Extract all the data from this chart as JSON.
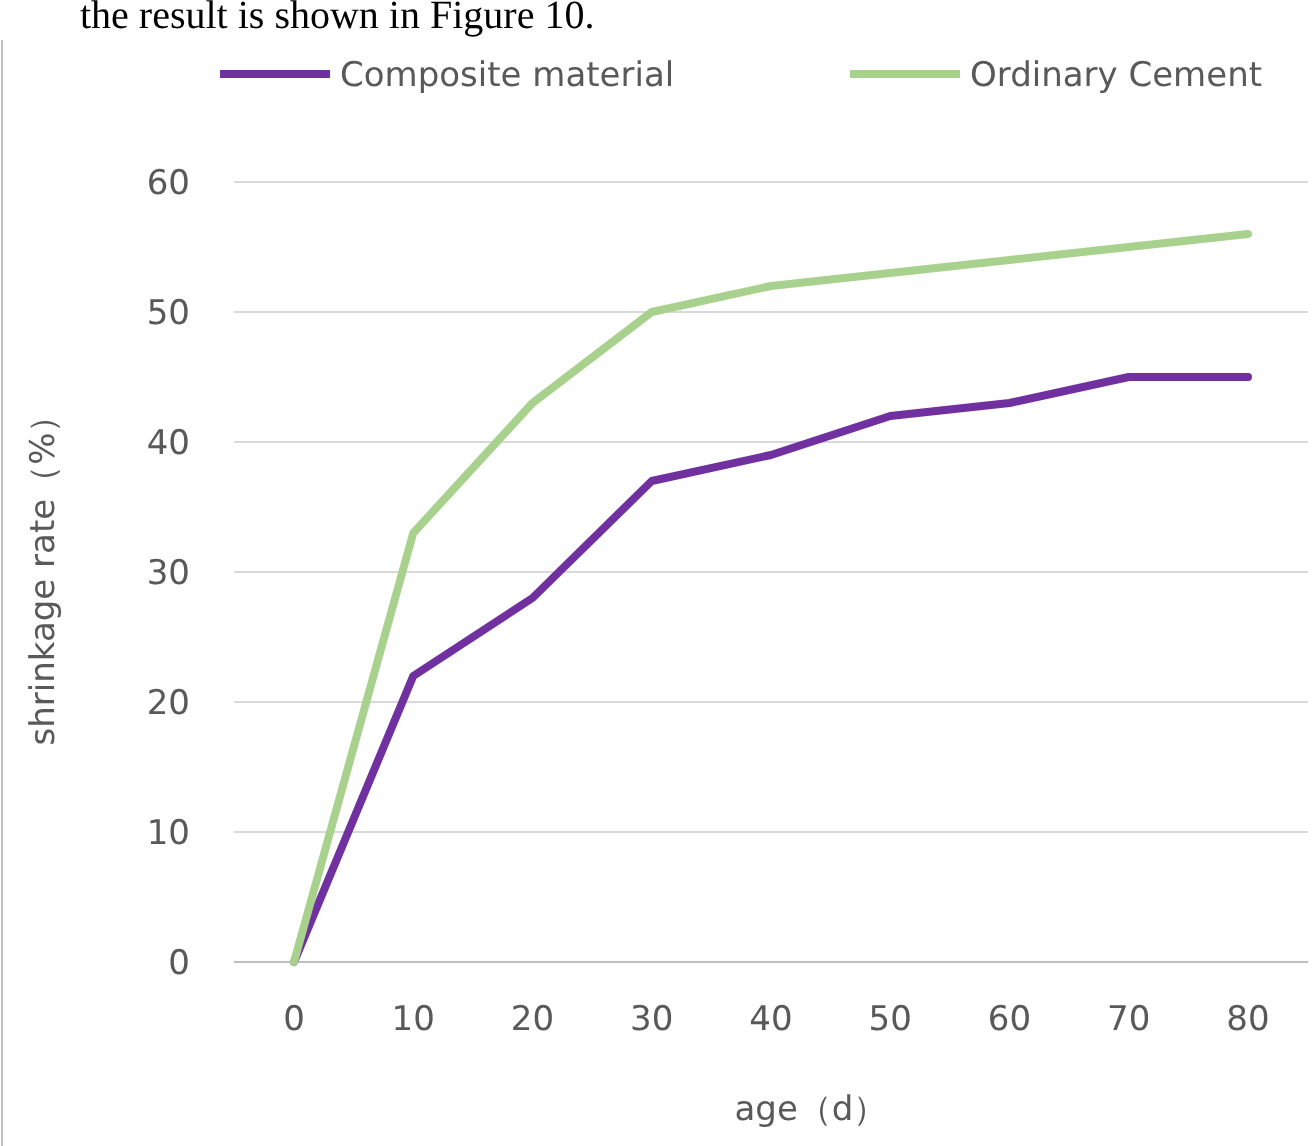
{
  "chart_data": {
    "type": "line",
    "ylabel": "shrinkage rate（%）",
    "xlabel": "age（d）",
    "annotations": [
      "the result is shown in Figure 10."
    ],
    "categories": [
      "0",
      "10",
      "20",
      "30",
      "40",
      "50",
      "60",
      "70",
      "80"
    ],
    "series": [
      {
        "name": "Composite material",
        "color": "#7030a0",
        "values": [
          0,
          22,
          28,
          37,
          39,
          42,
          43,
          45,
          45
        ]
      },
      {
        "name": "Ordinary Cement",
        "color": "#a9d18e",
        "values": [
          0,
          33,
          43,
          50,
          52,
          53,
          54,
          55,
          56
        ]
      }
    ],
    "ylim": [
      0,
      60
    ],
    "yticks": [
      0,
      10,
      20,
      30,
      40,
      50,
      60
    ],
    "grid": "y",
    "legend": "top",
    "marker": "none",
    "line_style": "solid"
  }
}
